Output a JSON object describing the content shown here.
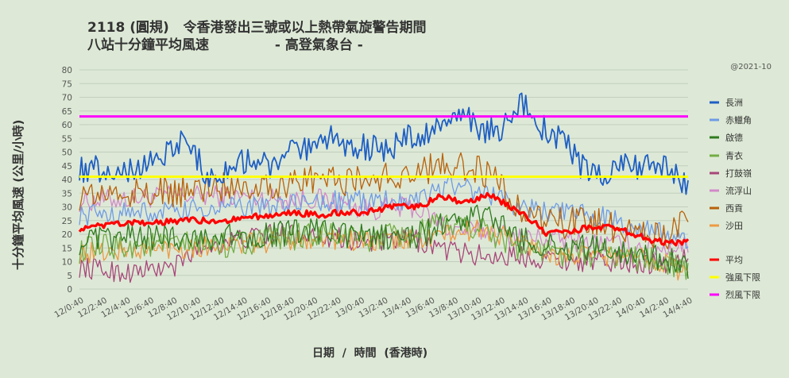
{
  "chart_data": {
    "type": "line",
    "title_line1": "2118 (圓規)   令香港發出三號或以上熱帶氣旋警告期間",
    "title_line2": "八站十分鐘平均風速              - 高登氣象台 -",
    "stamp": "@2021-10",
    "ylabel": "十分鐘平均風速 (公里/小時)",
    "xlabel": "日期  /  時間  (香港時)",
    "ylim": [
      0,
      80
    ],
    "yticks": [
      0,
      5,
      10,
      15,
      20,
      25,
      30,
      35,
      40,
      45,
      50,
      55,
      60,
      65,
      70,
      75,
      80
    ],
    "grid": true,
    "legend_position": "right",
    "x_tick_labels": [
      "12/0:40",
      "12/2:40",
      "12/4:40",
      "12/6:40",
      "12/8:40",
      "12/10:40",
      "12/12:40",
      "12/14:40",
      "12/16:40",
      "12/18:40",
      "12/20:40",
      "12/22:40",
      "13/0:40",
      "13/2:40",
      "13/4:40",
      "13/6:40",
      "13/8:40",
      "13/10:40",
      "13/12:40",
      "13/14:40",
      "13/16:40",
      "13/18:40",
      "13/20:40",
      "13/22:40",
      "14/0:40",
      "14/2:40",
      "14/4:40"
    ],
    "series": [
      {
        "name": "長洲",
        "color": "#1f5fc4",
        "keys": [
          [
            0,
            44
          ],
          [
            2,
            44
          ],
          [
            4,
            43
          ],
          [
            6,
            47
          ],
          [
            8,
            52
          ],
          [
            9,
            55
          ],
          [
            10,
            47
          ],
          [
            11,
            40
          ],
          [
            12,
            42
          ],
          [
            14,
            47
          ],
          [
            16,
            45
          ],
          [
            18,
            50
          ],
          [
            20,
            51
          ],
          [
            21,
            55
          ],
          [
            22,
            53
          ],
          [
            24,
            52
          ],
          [
            26,
            50
          ],
          [
            27,
            55
          ],
          [
            28,
            56
          ],
          [
            30,
            58
          ],
          [
            31,
            61
          ],
          [
            32,
            64
          ],
          [
            33,
            60
          ],
          [
            34,
            57
          ],
          [
            35,
            58
          ],
          [
            36,
            62
          ],
          [
            37,
            68
          ],
          [
            38,
            64
          ],
          [
            39,
            58
          ],
          [
            40,
            55
          ],
          [
            41,
            52
          ],
          [
            42,
            45
          ],
          [
            43,
            43
          ],
          [
            44,
            42
          ],
          [
            46,
            45
          ],
          [
            48,
            45
          ],
          [
            49,
            44
          ],
          [
            50,
            42
          ],
          [
            51,
            37
          ]
        ]
      },
      {
        "name": "赤鱲角",
        "color": "#6f9be5",
        "keys": [
          [
            0,
            27
          ],
          [
            4,
            28
          ],
          [
            8,
            28
          ],
          [
            12,
            30
          ],
          [
            16,
            30
          ],
          [
            20,
            32
          ],
          [
            24,
            32
          ],
          [
            28,
            33
          ],
          [
            31,
            38
          ],
          [
            34,
            35
          ],
          [
            37,
            30
          ],
          [
            40,
            28
          ],
          [
            43,
            27
          ],
          [
            46,
            24
          ],
          [
            49,
            20
          ],
          [
            51,
            17
          ]
        ]
      },
      {
        "name": "啟德",
        "color": "#2f7a1f",
        "keys": [
          [
            0,
            17
          ],
          [
            4,
            19
          ],
          [
            8,
            19
          ],
          [
            12,
            19
          ],
          [
            16,
            20
          ],
          [
            20,
            21
          ],
          [
            24,
            19
          ],
          [
            28,
            19
          ],
          [
            31,
            24
          ],
          [
            34,
            27
          ],
          [
            37,
            18
          ],
          [
            40,
            15
          ],
          [
            43,
            15
          ],
          [
            46,
            14
          ],
          [
            49,
            11
          ],
          [
            51,
            8
          ]
        ]
      },
      {
        "name": "青衣",
        "color": "#73ad45",
        "keys": [
          [
            0,
            14
          ],
          [
            4,
            16
          ],
          [
            8,
            16
          ],
          [
            12,
            16
          ],
          [
            16,
            18
          ],
          [
            20,
            20
          ],
          [
            24,
            18
          ],
          [
            28,
            20
          ],
          [
            31,
            24
          ],
          [
            34,
            22
          ],
          [
            37,
            15
          ],
          [
            40,
            13
          ],
          [
            43,
            13
          ],
          [
            46,
            12
          ],
          [
            49,
            10
          ],
          [
            51,
            6
          ]
        ]
      },
      {
        "name": "打鼓嶺",
        "color": "#a8467a",
        "keys": [
          [
            0,
            8
          ],
          [
            4,
            6
          ],
          [
            8,
            8
          ],
          [
            10,
            15
          ],
          [
            12,
            17
          ],
          [
            16,
            20
          ],
          [
            20,
            20
          ],
          [
            24,
            17
          ],
          [
            28,
            18
          ],
          [
            31,
            14
          ],
          [
            34,
            12
          ],
          [
            37,
            12
          ],
          [
            40,
            11
          ],
          [
            43,
            10
          ],
          [
            46,
            10
          ],
          [
            49,
            9
          ],
          [
            51,
            12
          ]
        ]
      },
      {
        "name": "流浮山",
        "color": "#d289c9",
        "keys": [
          [
            0,
            32
          ],
          [
            4,
            33
          ],
          [
            8,
            34
          ],
          [
            12,
            34
          ],
          [
            16,
            33
          ],
          [
            20,
            33
          ],
          [
            24,
            29
          ],
          [
            28,
            30
          ],
          [
            31,
            22
          ],
          [
            34,
            21
          ],
          [
            37,
            19
          ],
          [
            40,
            18
          ],
          [
            43,
            17
          ],
          [
            46,
            16
          ],
          [
            49,
            15
          ],
          [
            51,
            16
          ]
        ]
      },
      {
        "name": "西貢",
        "color": "#b8620b",
        "keys": [
          [
            0,
            34
          ],
          [
            4,
            35
          ],
          [
            8,
            35
          ],
          [
            12,
            38
          ],
          [
            16,
            38
          ],
          [
            20,
            40
          ],
          [
            24,
            40
          ],
          [
            28,
            42
          ],
          [
            31,
            46
          ],
          [
            34,
            43
          ],
          [
            37,
            28
          ],
          [
            40,
            24
          ],
          [
            43,
            24
          ],
          [
            46,
            22
          ],
          [
            49,
            20
          ],
          [
            51,
            24
          ]
        ]
      },
      {
        "name": "沙田",
        "color": "#ec9a43",
        "keys": [
          [
            0,
            13
          ],
          [
            4,
            14
          ],
          [
            8,
            15
          ],
          [
            12,
            16
          ],
          [
            16,
            17
          ],
          [
            20,
            19
          ],
          [
            24,
            17
          ],
          [
            28,
            18
          ],
          [
            31,
            20
          ],
          [
            34,
            22
          ],
          [
            37,
            17
          ],
          [
            40,
            12
          ],
          [
            43,
            12
          ],
          [
            46,
            12
          ],
          [
            49,
            10
          ],
          [
            51,
            5
          ]
        ]
      },
      {
        "name": "平均",
        "color": "#ff0000",
        "keys": [
          [
            0,
            22
          ],
          [
            2,
            23
          ],
          [
            4,
            24
          ],
          [
            6,
            24
          ],
          [
            8,
            25
          ],
          [
            10,
            25
          ],
          [
            12,
            25
          ],
          [
            14,
            26
          ],
          [
            16,
            27
          ],
          [
            18,
            28
          ],
          [
            20,
            27
          ],
          [
            22,
            28
          ],
          [
            24,
            28
          ],
          [
            26,
            30
          ],
          [
            28,
            30
          ],
          [
            29,
            31
          ],
          [
            30,
            34
          ],
          [
            31,
            33
          ],
          [
            32,
            31
          ],
          [
            33,
            32
          ],
          [
            34,
            34
          ],
          [
            35,
            33
          ],
          [
            36,
            30
          ],
          [
            37,
            28
          ],
          [
            38,
            25
          ],
          [
            39,
            20
          ],
          [
            40,
            21
          ],
          [
            41,
            21
          ],
          [
            42,
            22
          ],
          [
            43,
            22
          ],
          [
            44,
            23
          ],
          [
            45,
            22
          ],
          [
            46,
            21
          ],
          [
            47,
            19
          ],
          [
            48,
            18
          ],
          [
            49,
            17
          ],
          [
            50,
            17
          ],
          [
            51,
            17
          ]
        ]
      },
      {
        "name": "強風下限",
        "color": "#ffff00",
        "value": 41
      },
      {
        "name": "烈風下限",
        "color": "#ff00ff",
        "value": 63
      }
    ]
  }
}
